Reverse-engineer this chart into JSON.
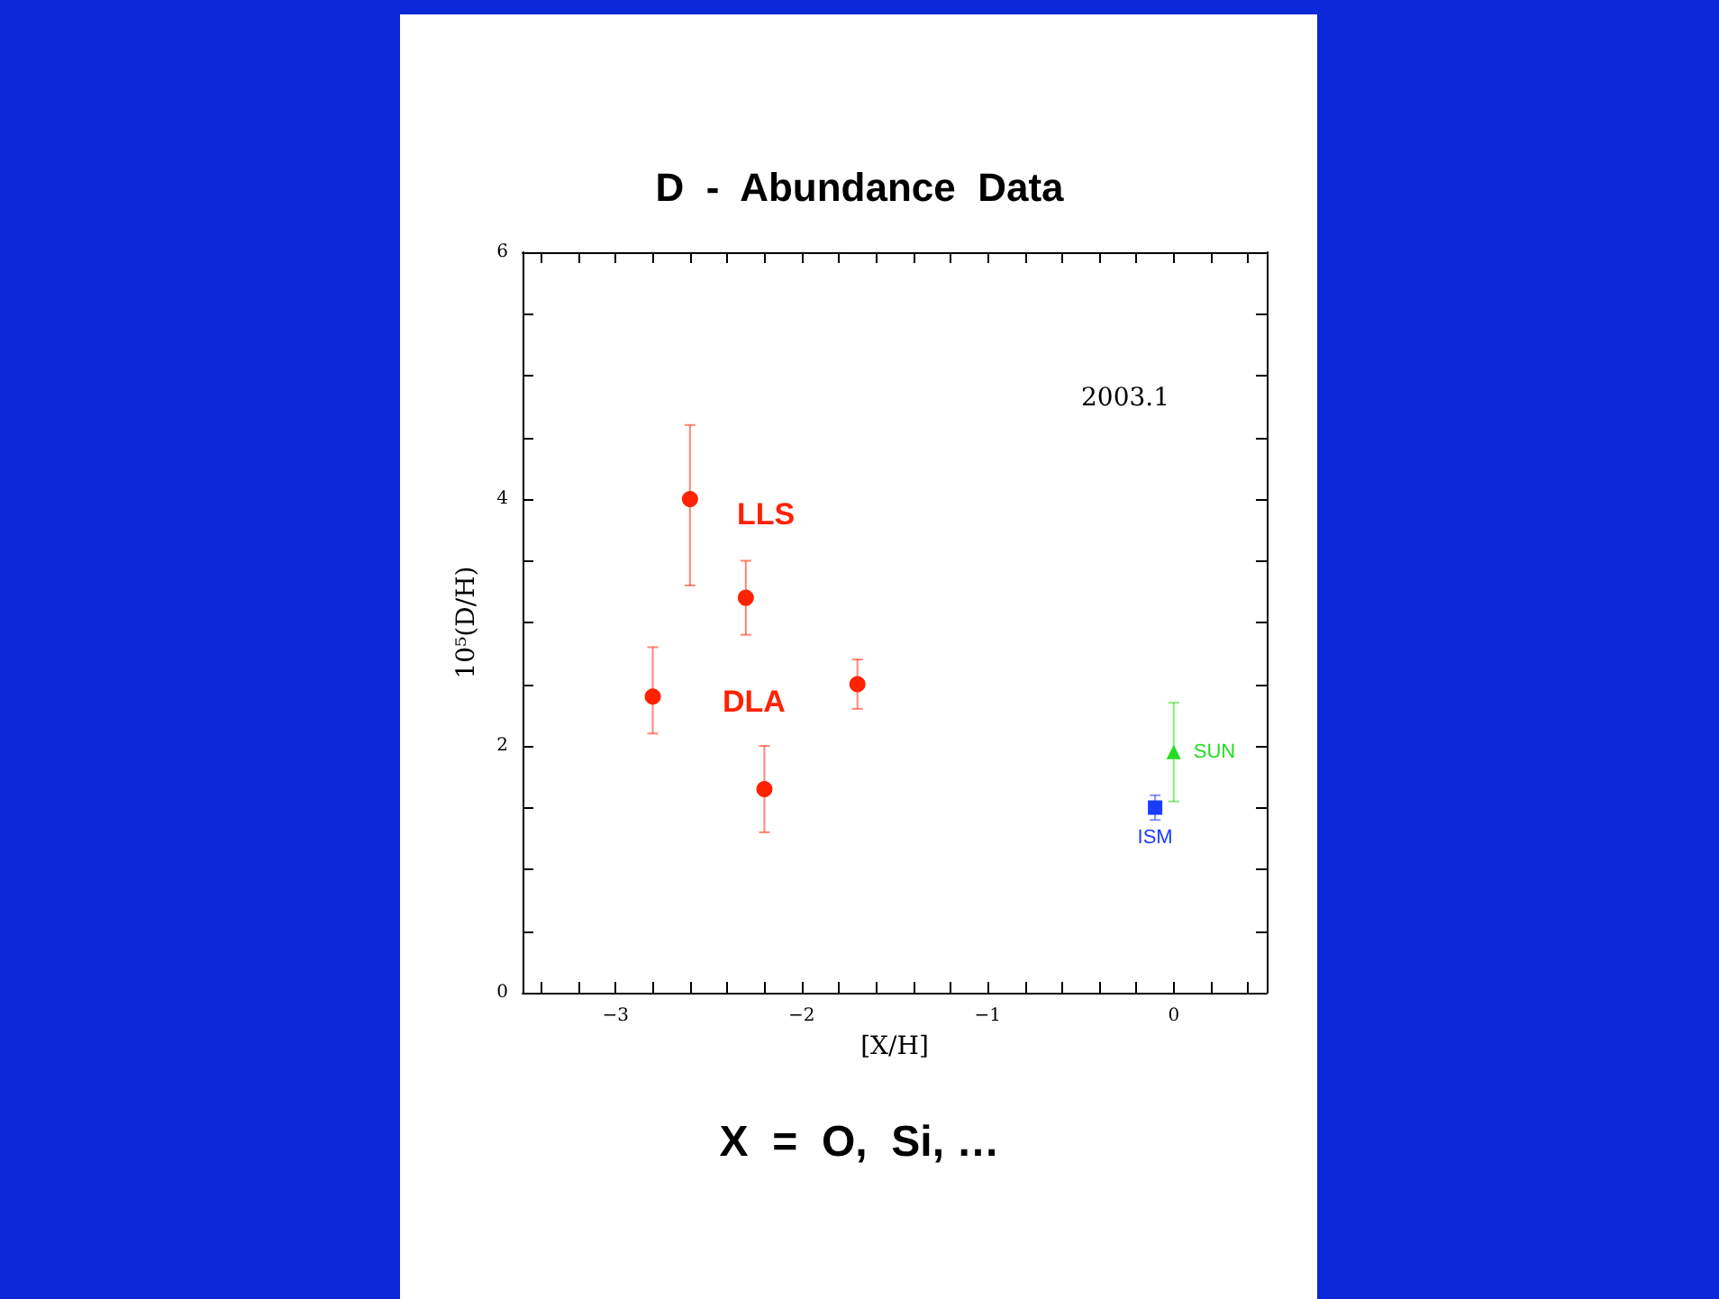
{
  "chart_data": {
    "type": "scatter",
    "title": "D  -  Abundance  Data",
    "xlabel": "[X/H]",
    "ylabel": "10⁵(D/H)",
    "xlim": [
      -3.5,
      0.5
    ],
    "ylim": [
      0,
      6
    ],
    "xticks": [
      {
        "value": -3.4,
        "label": null
      },
      {
        "value": -3.2,
        "label": null
      },
      -3,
      {
        "value": -2.8,
        "label": null
      },
      {
        "value": -2.6,
        "label": null
      },
      {
        "value": -2.4,
        "label": null
      },
      {
        "value": -2.2,
        "label": null
      },
      -2,
      {
        "value": -1.8,
        "label": null
      },
      {
        "value": -1.6,
        "label": null
      },
      {
        "value": -1.4,
        "label": null
      },
      {
        "value": -1.2,
        "label": null
      },
      -1,
      {
        "value": -0.8,
        "label": null
      },
      {
        "value": -0.6,
        "label": null
      },
      {
        "value": -0.4,
        "label": null
      },
      {
        "value": -0.2,
        "label": null
      },
      0,
      {
        "value": 0.2,
        "label": null
      },
      {
        "value": 0.4,
        "label": null
      }
    ],
    "yticks": [
      0,
      {
        "value": 0.5,
        "label": null
      },
      {
        "value": 1,
        "label": null
      },
      {
        "value": 1.5,
        "label": null
      },
      2,
      {
        "value": 2.5,
        "label": null
      },
      {
        "value": 3,
        "label": null
      },
      {
        "value": 3.5,
        "label": null
      },
      4,
      {
        "value": 4.5,
        "label": null
      },
      {
        "value": 5,
        "label": null
      },
      {
        "value": 5.5,
        "label": null
      },
      6
    ],
    "series": [
      {
        "color": "#ff2200",
        "marker": "circle",
        "x": [
          -2.8,
          -2.6,
          -2.3,
          -2.2,
          -1.7
        ],
        "values": [
          2.4,
          4.0,
          3.2,
          1.65,
          2.5
        ],
        "errors": [
          [
            2.1,
            2.8
          ],
          [
            3.3,
            4.6
          ],
          [
            2.9,
            3.5
          ],
          [
            1.3,
            2.0
          ],
          [
            2.3,
            2.7
          ]
        ]
      },
      {
        "name": "ISM",
        "color": "#1a3cff",
        "marker": "square",
        "x": [
          -0.1
        ],
        "values": [
          1.5
        ],
        "errors": [
          [
            1.4,
            1.6
          ]
        ]
      },
      {
        "name": "SUN",
        "color": "#22dd22",
        "marker": "triangle",
        "x": [
          0
        ],
        "values": [
          1.95
        ],
        "errors": [
          [
            1.55,
            2.35
          ]
        ]
      }
    ],
    "annotations": [
      "2003.1",
      "LLS",
      "DLA",
      "X  =  O,  Si, …"
    ],
    "grid": false,
    "legend": false
  }
}
